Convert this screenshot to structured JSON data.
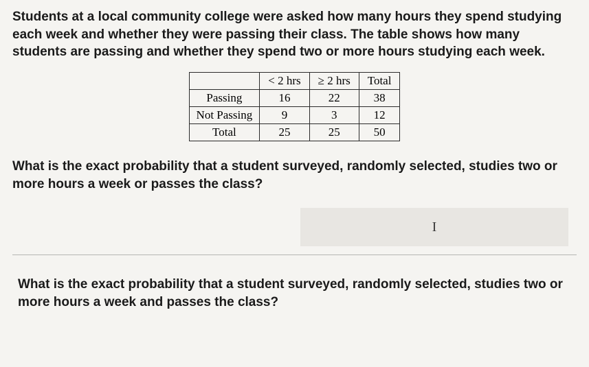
{
  "intro": "Students at a local community college were asked how many hours they spend studying each week and whether they were passing their class. The table shows how many students are passing and whether they spend two or more hours studying each week.",
  "intro_fontsize": 19,
  "intro_color": "#1a1a1a",
  "table": {
    "fontsize": 17,
    "border_color": "#2a2a2a",
    "columns": [
      "",
      "< 2 hrs",
      "≥ 2 hrs",
      "Total"
    ],
    "rows": [
      [
        "Passing",
        "16",
        "22",
        "38"
      ],
      [
        "Not Passing",
        "9",
        "3",
        "12"
      ],
      [
        "Total",
        "25",
        "25",
        "50"
      ]
    ]
  },
  "question1": "What is the exact probability that a student surveyed, randomly selected, studies two or more hours a week or passes the class?",
  "question_fontsize": 19,
  "question_color": "#1a1a1a",
  "answer_box": {
    "background_color": "#e8e6e2",
    "cursor_glyph": "I",
    "cursor_color": "#3a3a3a",
    "cursor_fontsize": 20
  },
  "divider_color": "#8a8a8a",
  "question2": "What is the exact probability that a student surveyed, randomly selected, studies two or more hours a week and passes the class?",
  "background_color": "#f5f4f1"
}
